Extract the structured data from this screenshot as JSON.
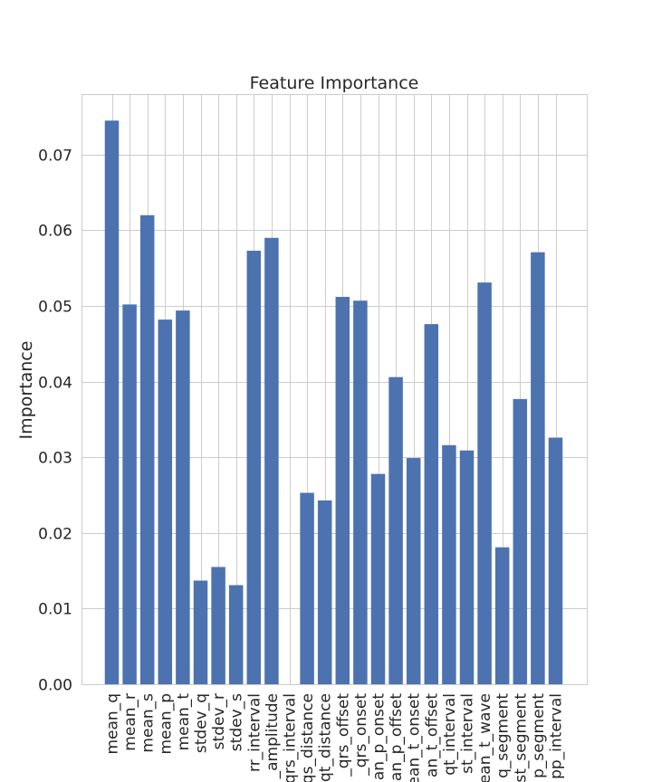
{
  "chart_data": {
    "type": "bar",
    "title": "Feature Importance",
    "xlabel": "",
    "ylabel": "Importance",
    "ylim": [
      0,
      0.078
    ],
    "yticks": [
      0.0,
      0.01,
      0.02,
      0.03,
      0.04,
      0.05,
      0.06,
      0.07
    ],
    "ytick_labels": [
      "0.00",
      "0.01",
      "0.02",
      "0.03",
      "0.04",
      "0.05",
      "0.06",
      "0.07"
    ],
    "grid": true,
    "bar_color": "#4c72b0",
    "categories": [
      "mean_q",
      "mean_r",
      "mean_s",
      "mean_p",
      "mean_t",
      "stdev_q",
      "stdev_r",
      "stdev_s",
      "rr_interval",
      "_amplitude",
      "qrs_interval",
      "qs_distance",
      "qt_distance",
      "_qrs_offset",
      "_qrs_onset",
      "an_p_onset",
      "an_p_offset",
      "ean_t_onset",
      "an_t_offset",
      "qt_interval",
      "st_interval",
      "ean_t_wave",
      "q_segment",
      "st_segment",
      "p_segment",
      "pp_interval"
    ],
    "values": [
      0.0745,
      0.0502,
      0.062,
      0.0482,
      0.0494,
      0.0137,
      0.0155,
      0.0131,
      0.0573,
      0.059,
      0.0,
      0.0253,
      0.0243,
      0.0512,
      0.0507,
      0.0278,
      0.0406,
      0.0299,
      0.0476,
      0.0316,
      0.0309,
      0.0531,
      0.0181,
      0.0377,
      0.0571,
      0.0326
    ]
  }
}
